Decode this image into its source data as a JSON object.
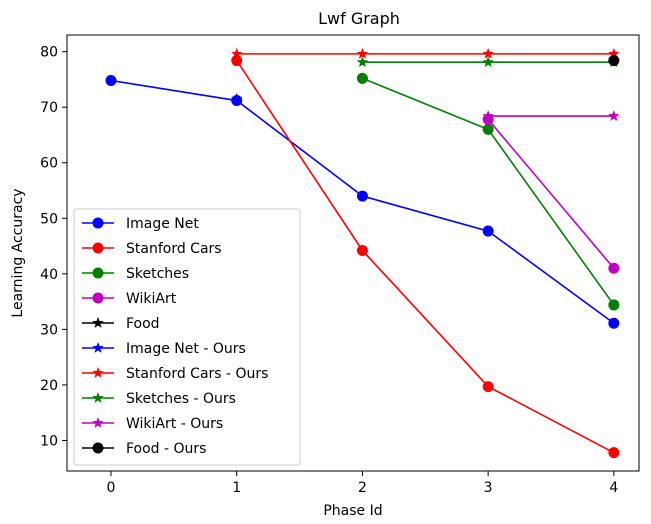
{
  "chart_data": {
    "type": "line",
    "title": "Lwf Graph",
    "xlabel": "Phase Id",
    "ylabel": "Learning Accuracy",
    "xlim": [
      -0.35,
      4.2
    ],
    "ylim": [
      4.5,
      83
    ],
    "xticks": [
      0,
      1,
      2,
      3,
      4
    ],
    "yticks": [
      10,
      20,
      30,
      40,
      50,
      60,
      70,
      80
    ],
    "grid": false,
    "legend_position": "lower-left",
    "series": [
      {
        "name": "Image Net",
        "color": "#0000ff",
        "marker": "circle",
        "x": [
          0,
          1,
          2,
          3,
          4
        ],
        "y": [
          74.8,
          71.2,
          54.0,
          47.7,
          31.1
        ]
      },
      {
        "name": "Stanford Cars",
        "color": "#ff0000",
        "marker": "circle",
        "x": [
          1,
          2,
          3,
          4
        ],
        "y": [
          78.4,
          44.2,
          19.7,
          7.8
        ]
      },
      {
        "name": "Sketches",
        "color": "#008000",
        "marker": "circle",
        "x": [
          2,
          3,
          4
        ],
        "y": [
          75.2,
          66.0,
          34.4
        ]
      },
      {
        "name": "WikiArt",
        "color": "#bf00bf",
        "marker": "circle",
        "x": [
          3,
          4
        ],
        "y": [
          67.8,
          41.0
        ]
      },
      {
        "name": "Food",
        "color": "#000000",
        "marker": "star",
        "x": [
          4
        ],
        "y": [
          78.4
        ]
      },
      {
        "name": "Image Net - Ours",
        "color": "#0000ff",
        "marker": "star",
        "x": [
          1
        ],
        "y": [
          71.5
        ]
      },
      {
        "name": "Stanford Cars - Ours",
        "color": "#ff0000",
        "marker": "star",
        "x": [
          1,
          2,
          3,
          4
        ],
        "y": [
          79.6,
          79.6,
          79.6,
          79.6
        ]
      },
      {
        "name": "Sketches - Ours",
        "color": "#008000",
        "marker": "star",
        "x": [
          2,
          3,
          4
        ],
        "y": [
          78.1,
          78.1,
          78.1
        ]
      },
      {
        "name": "WikiArt - Ours",
        "color": "#bf00bf",
        "marker": "star",
        "x": [
          3,
          4
        ],
        "y": [
          68.4,
          68.4
        ]
      },
      {
        "name": "Food - Ours",
        "color": "#000000",
        "marker": "circle",
        "x": [
          4
        ],
        "y": [
          78.4
        ]
      }
    ]
  }
}
